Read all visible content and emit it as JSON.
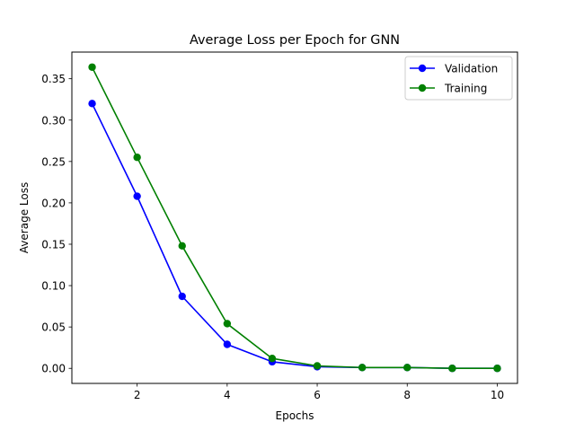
{
  "chart_data": {
    "type": "line",
    "title": "Average Loss per Epoch for GNN",
    "xlabel": "Epochs",
    "ylabel": "Average Loss",
    "x": [
      1,
      2,
      3,
      4,
      5,
      6,
      7,
      8,
      9,
      10
    ],
    "xlim": [
      0.55,
      10.45
    ],
    "ylim": [
      -0.0182,
      0.3822
    ],
    "xticks": [
      2,
      4,
      6,
      8,
      10
    ],
    "yticks": [
      0.0,
      0.05,
      0.1,
      0.15,
      0.2,
      0.25,
      0.3,
      0.35
    ],
    "ytick_labels": [
      "0.00",
      "0.05",
      "0.10",
      "0.15",
      "0.20",
      "0.25",
      "0.30",
      "0.35"
    ],
    "grid": false,
    "legend_position": "top-right",
    "series": [
      {
        "name": "Validation",
        "color": "#0000ff",
        "marker": "circle",
        "values": [
          0.32,
          0.208,
          0.087,
          0.029,
          0.008,
          0.002,
          0.001,
          0.001,
          0.0,
          0.0
        ]
      },
      {
        "name": "Training",
        "color": "#008000",
        "marker": "circle",
        "values": [
          0.364,
          0.255,
          0.148,
          0.054,
          0.012,
          0.003,
          0.001,
          0.001,
          0.0,
          0.0
        ]
      }
    ]
  }
}
